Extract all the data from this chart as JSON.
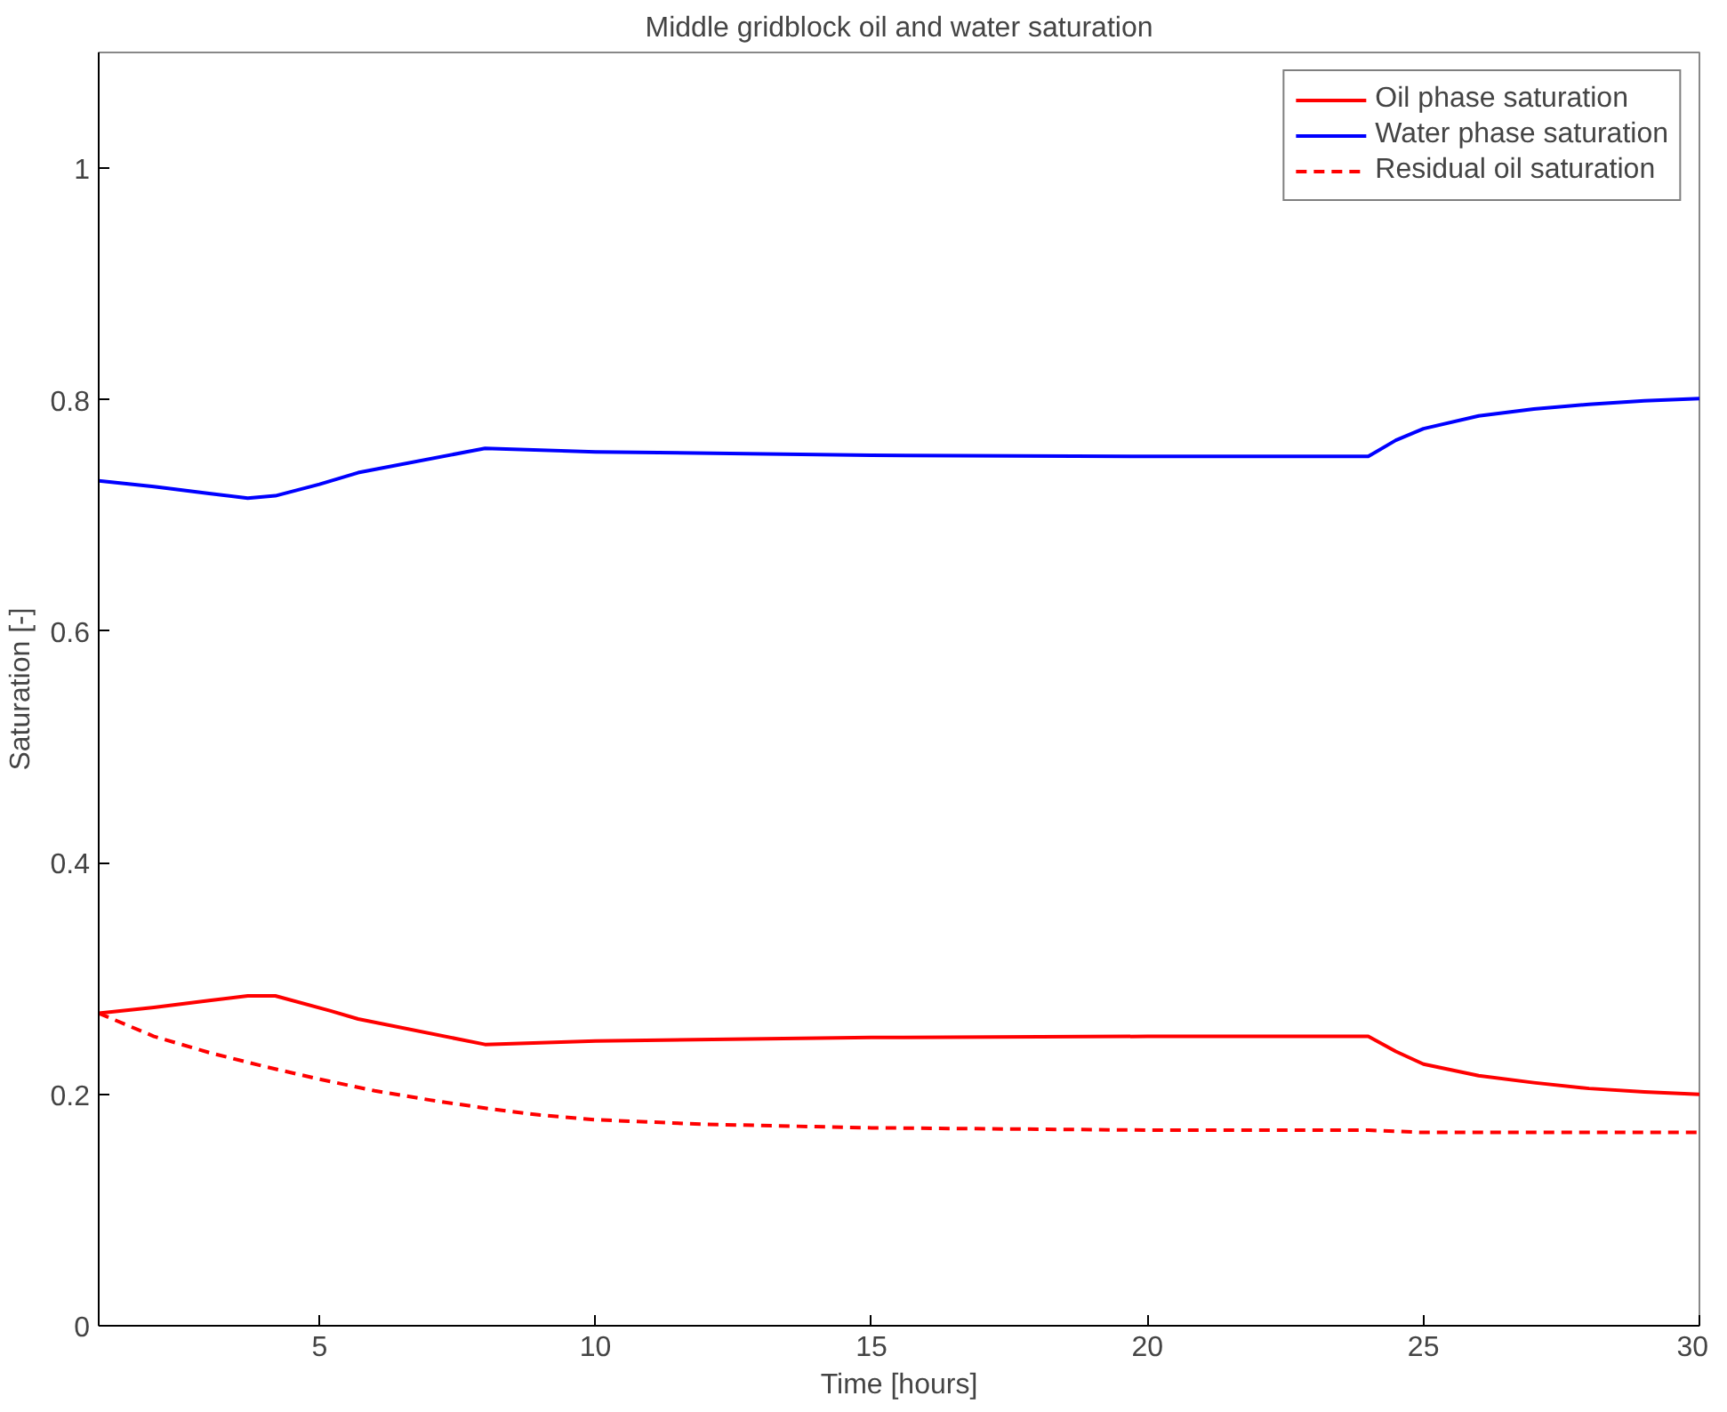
{
  "chart_data": {
    "type": "line",
    "title": "Middle gridblock oil and water saturation",
    "xlabel": "Time [hours]",
    "ylabel": "Saturation [-]",
    "xlim": [
      1,
      30
    ],
    "ylim": [
      0,
      1.1
    ],
    "xticks": [
      5,
      10,
      15,
      20,
      25,
      30
    ],
    "yticks": [
      0,
      0.2,
      0.4,
      0.6,
      0.8,
      1
    ],
    "grid": false,
    "legend": "top right",
    "series": [
      {
        "name": "Oil phase saturation",
        "color": "#ff0000",
        "line_style": "solid",
        "x": [
          1,
          2,
          3,
          3.7,
          4.2,
          5.2,
          5.7,
          8,
          10,
          15,
          20,
          24,
          24.5,
          25,
          26,
          27,
          28,
          29,
          30
        ],
        "values": [
          0.27,
          0.275,
          0.281,
          0.285,
          0.285,
          0.272,
          0.265,
          0.243,
          0.246,
          0.249,
          0.25,
          0.25,
          0.237,
          0.226,
          0.216,
          0.21,
          0.205,
          0.202,
          0.2
        ]
      },
      {
        "name": "Water phase saturation",
        "color": "#0000ff",
        "line_style": "solid",
        "x": [
          1,
          2,
          3,
          3.7,
          4.2,
          5,
          5.7,
          8,
          10,
          15,
          20,
          24,
          24.5,
          25,
          26,
          27,
          28,
          29,
          30
        ],
        "values": [
          0.73,
          0.725,
          0.719,
          0.715,
          0.717,
          0.727,
          0.737,
          0.758,
          0.755,
          0.752,
          0.751,
          0.751,
          0.765,
          0.775,
          0.786,
          0.792,
          0.796,
          0.799,
          0.801
        ]
      },
      {
        "name": "Residual oil saturation",
        "color": "#ff0000",
        "line_style": "dashed",
        "x": [
          1,
          2,
          3,
          4,
          5,
          6,
          7,
          8,
          9,
          10,
          12,
          15,
          20,
          24,
          25,
          30
        ],
        "values": [
          0.27,
          0.25,
          0.236,
          0.224,
          0.213,
          0.203,
          0.195,
          0.188,
          0.182,
          0.178,
          0.174,
          0.171,
          0.169,
          0.169,
          0.167,
          0.167
        ]
      }
    ]
  }
}
